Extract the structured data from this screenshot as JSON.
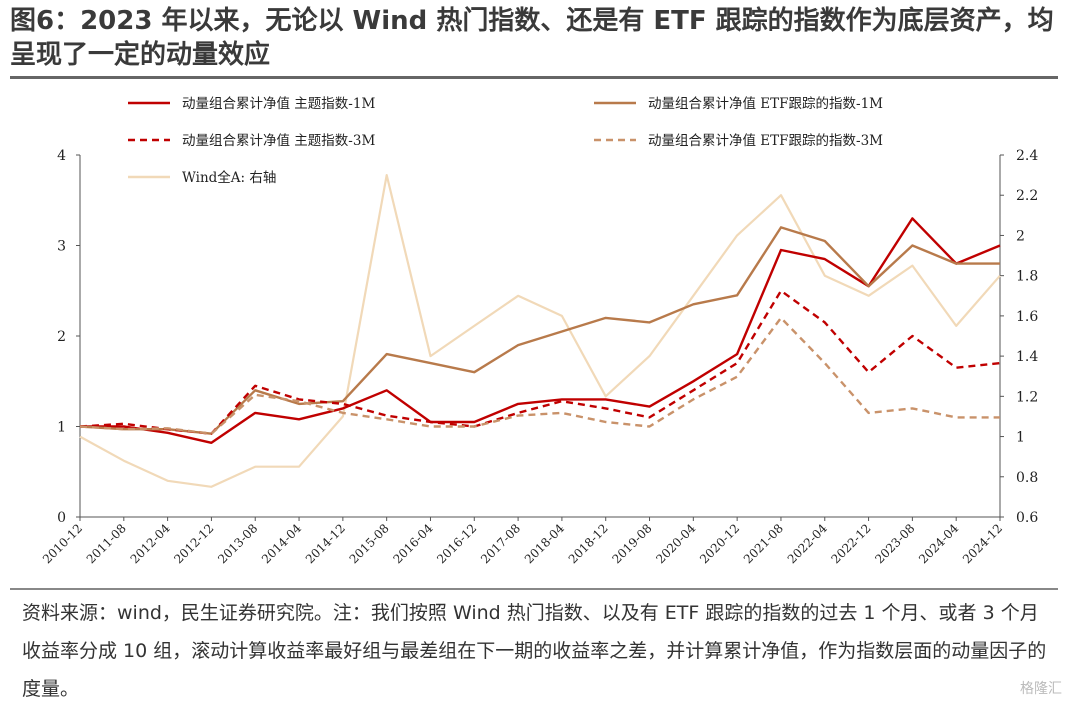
{
  "title": "图6：2023 年以来，无论以 Wind 热门指数、还是有 ETF 跟踪的指数作为底层资产，均呈现了一定的动量效应",
  "source": "资料来源：wind，民生证券研究院。注：我们按照 Wind 热门指数、以及有 ETF 跟踪的指数的过去 1 个月、或者 3 个月收益率分成 10 组，滚动计算收益率最好组与最差组在下一期的收益率之差，并计算累计净值，作为指数层面的动量因子的度量。",
  "watermark": "格隆汇",
  "chart_data": {
    "type": "line",
    "x": [
      "2010-12",
      "2011-08",
      "2012-04",
      "2012-12",
      "2013-08",
      "2014-04",
      "2014-12",
      "2015-08",
      "2016-04",
      "2016-12",
      "2017-08",
      "2018-04",
      "2018-12",
      "2019-08",
      "2020-04",
      "2020-12",
      "2021-08",
      "2022-04",
      "2022-12",
      "2023-08",
      "2024-04",
      "2024-12"
    ],
    "ylim_left": [
      0,
      4
    ],
    "yticks_left": [
      "0",
      "1",
      "2",
      "3",
      "4"
    ],
    "ylim_right": [
      0.6,
      2.4
    ],
    "yticks_right": [
      "0.6",
      "0.8",
      "1",
      "1.2",
      "1.4",
      "1.6",
      "1.8",
      "2",
      "2.2",
      "2.4"
    ],
    "legend_position": "top",
    "series": [
      {
        "name": "动量组合累计净值 主题指数-1M",
        "axis": "left",
        "color": "#c00000",
        "style": "solid",
        "values": [
          1.0,
          1.0,
          0.93,
          0.82,
          1.15,
          1.08,
          1.2,
          1.4,
          1.05,
          1.05,
          1.25,
          1.3,
          1.3,
          1.22,
          1.5,
          1.8,
          2.95,
          2.85,
          2.55,
          3.3,
          2.8,
          3.0
        ]
      },
      {
        "name": "动量组合累计净值 ETF跟踪的指数-1M",
        "axis": "left",
        "color": "#b87a4b",
        "style": "solid",
        "values": [
          1.0,
          0.97,
          0.97,
          0.92,
          1.4,
          1.25,
          1.28,
          1.8,
          1.7,
          1.6,
          1.9,
          2.05,
          2.2,
          2.15,
          2.35,
          2.45,
          3.2,
          3.05,
          2.55,
          3.0,
          2.8,
          2.8
        ]
      },
      {
        "name": "动量组合累计净值 主题指数-3M",
        "axis": "left",
        "color": "#c00000",
        "style": "dashed",
        "values": [
          1.0,
          1.03,
          0.97,
          0.92,
          1.45,
          1.3,
          1.25,
          1.12,
          1.05,
          1.0,
          1.15,
          1.28,
          1.2,
          1.1,
          1.4,
          1.7,
          2.5,
          2.15,
          1.6,
          2.0,
          1.65,
          1.7
        ]
      },
      {
        "name": "动量组合累计净值 ETF跟踪的指数-3M",
        "axis": "left",
        "color": "#c9926a",
        "style": "dashed",
        "values": [
          1.0,
          0.97,
          0.98,
          0.92,
          1.35,
          1.28,
          1.15,
          1.08,
          1.0,
          1.0,
          1.12,
          1.15,
          1.05,
          1.0,
          1.3,
          1.55,
          2.2,
          1.7,
          1.15,
          1.2,
          1.1,
          1.1
        ]
      },
      {
        "name": "Wind全A: 右轴",
        "axis": "right",
        "color": "#f1d9b8",
        "style": "solid",
        "values": [
          1.0,
          0.88,
          0.78,
          0.75,
          0.85,
          0.85,
          1.1,
          2.3,
          1.4,
          1.55,
          1.7,
          1.6,
          1.2,
          1.4,
          1.7,
          2.0,
          2.2,
          1.8,
          1.7,
          1.85,
          1.55,
          1.8
        ]
      }
    ]
  }
}
